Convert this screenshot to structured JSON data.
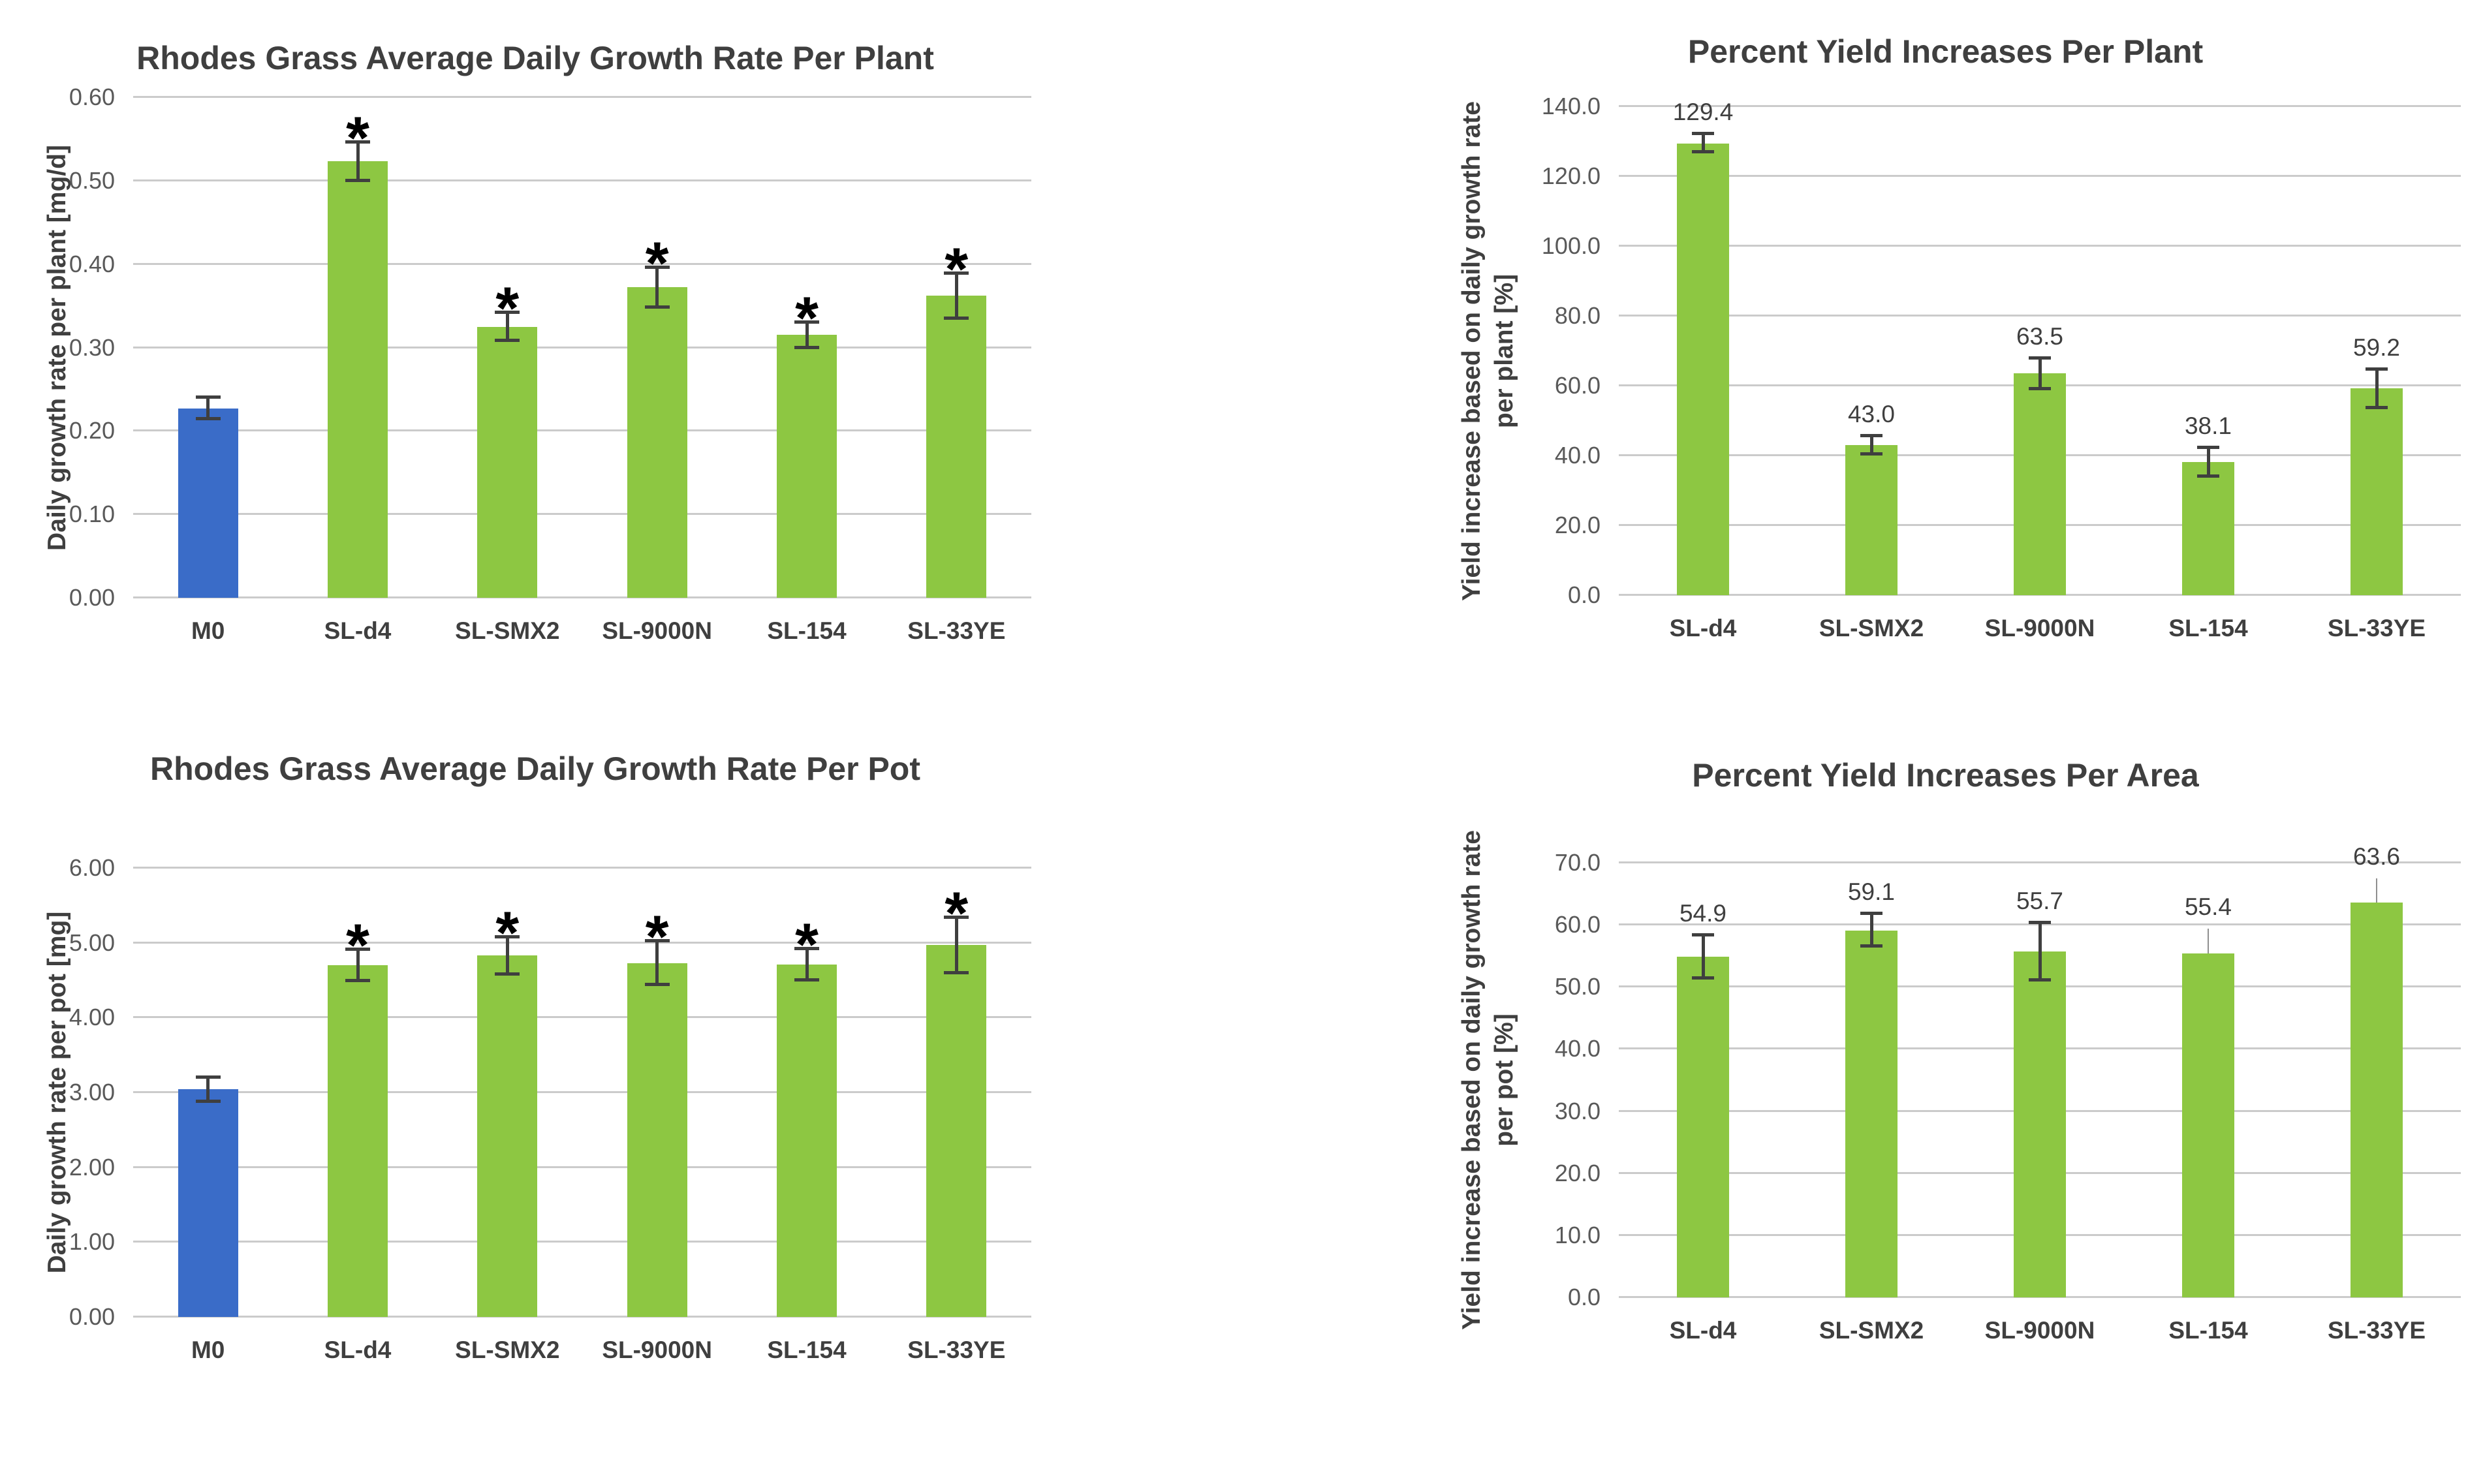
{
  "colors": {
    "background": "#FFFFFF",
    "control_bar": "#3A6CC8",
    "treatment_bar": "#8DC742",
    "gridline": "#CBCBCB",
    "title_text": "#3F3F3F",
    "tick_text": "#595959",
    "axis_label_text": "#3F3F3F",
    "category_text": "#3F3F3F",
    "data_label_text": "#3F3F3F",
    "error_bar": "#3F3F3F",
    "error_bar_thin": "#8F8F8F",
    "significance_marker": "#000000"
  },
  "chart_data": [
    {
      "id": "growth-rate-per-plant",
      "type": "bar",
      "title": "Rhodes Grass Average Daily Growth Rate Per Plant",
      "ylabel_lines": [
        "Daily growth rate per plant [mg/d]"
      ],
      "ylim": [
        0,
        0.6
      ],
      "grid": true,
      "legend": "none",
      "ytick_values": [
        0,
        0.1,
        0.2,
        0.3,
        0.4,
        0.5,
        0.6
      ],
      "ytick_labels": [
        "0.00",
        "0.10",
        "0.20",
        "0.30",
        "0.40",
        "0.50",
        "0.60"
      ],
      "show_data_labels": false,
      "bars": [
        {
          "category": "M0",
          "value": 0.227,
          "err_up": 0.013,
          "err_down": 0.013,
          "err_style": "normal",
          "color_role": "control",
          "significance": "",
          "data_label": ""
        },
        {
          "category": "SL-d4",
          "value": 0.523,
          "err_up": 0.023,
          "err_down": 0.023,
          "err_style": "normal",
          "color_role": "treatment",
          "significance": "*",
          "data_label": ""
        },
        {
          "category": "SL-SMX2",
          "value": 0.325,
          "err_up": 0.017,
          "err_down": 0.017,
          "err_style": "normal",
          "color_role": "treatment",
          "significance": "*",
          "data_label": ""
        },
        {
          "category": "SL-9000N",
          "value": 0.372,
          "err_up": 0.024,
          "err_down": 0.024,
          "err_style": "normal",
          "color_role": "treatment",
          "significance": "*",
          "data_label": ""
        },
        {
          "category": "SL-154",
          "value": 0.315,
          "err_up": 0.015,
          "err_down": 0.015,
          "err_style": "normal",
          "color_role": "treatment",
          "significance": "*",
          "data_label": ""
        },
        {
          "category": "SL-33YE",
          "value": 0.362,
          "err_up": 0.027,
          "err_down": 0.027,
          "err_style": "normal",
          "color_role": "treatment",
          "significance": "*",
          "data_label": ""
        }
      ]
    },
    {
      "id": "yield-increase-per-plant",
      "type": "bar",
      "title": "Percent Yield Increases Per Plant",
      "ylabel_lines": [
        "Yield increase based on daily growth rate",
        "per plant [%]"
      ],
      "ylim": [
        0,
        140
      ],
      "grid": true,
      "legend": "none",
      "ytick_values": [
        0,
        20,
        40,
        60,
        80,
        100,
        120,
        140
      ],
      "ytick_labels": [
        "0.0",
        "20.0",
        "40.0",
        "60.0",
        "80.0",
        "100.0",
        "120.0",
        "140.0"
      ],
      "show_data_labels": true,
      "bars": [
        {
          "category": "SL-d4",
          "value": 129.4,
          "err_up": 2.7,
          "err_down": 2.4,
          "err_style": "normal",
          "color_role": "treatment",
          "significance": "",
          "data_label": "129.4"
        },
        {
          "category": "SL-SMX2",
          "value": 43.0,
          "err_up": 2.6,
          "err_down": 2.6,
          "err_style": "normal",
          "color_role": "treatment",
          "significance": "",
          "data_label": "43.0"
        },
        {
          "category": "SL-9000N",
          "value": 63.5,
          "err_up": 4.4,
          "err_down": 4.4,
          "err_style": "normal",
          "color_role": "treatment",
          "significance": "",
          "data_label": "63.5"
        },
        {
          "category": "SL-154",
          "value": 38.1,
          "err_up": 4.1,
          "err_down": 4.1,
          "err_style": "normal",
          "color_role": "treatment",
          "significance": "",
          "data_label": "38.1"
        },
        {
          "category": "SL-33YE",
          "value": 59.2,
          "err_up": 5.5,
          "err_down": 5.5,
          "err_style": "normal",
          "color_role": "treatment",
          "significance": "",
          "data_label": "59.2"
        }
      ]
    },
    {
      "id": "growth-rate-per-pot",
      "type": "bar",
      "title": "Rhodes Grass Average Daily Growth Rate Per Pot",
      "ylabel_lines": [
        "Daily growth rate per pot [mg]"
      ],
      "ylim": [
        0,
        6
      ],
      "grid": true,
      "legend": "none",
      "ytick_values": [
        0,
        1,
        2,
        3,
        4,
        5,
        6
      ],
      "ytick_labels": [
        "0.00",
        "1.00",
        "2.00",
        "3.00",
        "4.00",
        "5.00",
        "6.00"
      ],
      "show_data_labels": false,
      "bars": [
        {
          "category": "M0",
          "value": 3.04,
          "err_up": 0.16,
          "err_down": 0.16,
          "err_style": "normal",
          "color_role": "control",
          "significance": "",
          "data_label": ""
        },
        {
          "category": "SL-d4",
          "value": 4.7,
          "err_up": 0.21,
          "err_down": 0.21,
          "err_style": "normal",
          "color_role": "treatment",
          "significance": "*",
          "data_label": ""
        },
        {
          "category": "SL-SMX2",
          "value": 4.83,
          "err_up": 0.25,
          "err_down": 0.25,
          "err_style": "normal",
          "color_role": "treatment",
          "significance": "*",
          "data_label": ""
        },
        {
          "category": "SL-9000N",
          "value": 4.73,
          "err_up": 0.29,
          "err_down": 0.29,
          "err_style": "normal",
          "color_role": "treatment",
          "significance": "*",
          "data_label": ""
        },
        {
          "category": "SL-154",
          "value": 4.71,
          "err_up": 0.21,
          "err_down": 0.21,
          "err_style": "normal",
          "color_role": "treatment",
          "significance": "*",
          "data_label": ""
        },
        {
          "category": "SL-33YE",
          "value": 4.97,
          "err_up": 0.37,
          "err_down": 0.37,
          "err_style": "normal",
          "color_role": "treatment",
          "significance": "*",
          "data_label": ""
        }
      ]
    },
    {
      "id": "yield-increase-per-area",
      "type": "bar",
      "title": "Percent Yield Increases Per Area",
      "ylabel_lines": [
        "Yield increase based on daily growth rate",
        "per pot [%]"
      ],
      "ylim": [
        0,
        70
      ],
      "grid": true,
      "legend": "none",
      "ytick_values": [
        0,
        10,
        20,
        30,
        40,
        50,
        60,
        70
      ],
      "ytick_labels": [
        "0.0",
        "10.0",
        "20.0",
        "30.0",
        "40.0",
        "50.0",
        "60.0",
        "70.0"
      ],
      "show_data_labels": true,
      "bars": [
        {
          "category": "SL-d4",
          "value": 54.9,
          "err_up": 3.4,
          "err_down": 3.5,
          "err_style": "normal",
          "color_role": "treatment",
          "significance": "",
          "data_label": "54.9"
        },
        {
          "category": "SL-SMX2",
          "value": 59.1,
          "err_up": 2.7,
          "err_down": 2.5,
          "err_style": "normal",
          "color_role": "treatment",
          "significance": "",
          "data_label": "59.1"
        },
        {
          "category": "SL-9000N",
          "value": 55.7,
          "err_up": 4.6,
          "err_down": 4.6,
          "err_style": "normal",
          "color_role": "treatment",
          "significance": "",
          "data_label": "55.7"
        },
        {
          "category": "SL-154",
          "value": 55.4,
          "err_up": 4.0,
          "err_down": 0,
          "err_style": "thin",
          "color_role": "treatment",
          "significance": "",
          "data_label": "55.4"
        },
        {
          "category": "SL-33YE",
          "value": 63.6,
          "err_up": 3.9,
          "err_down": 0,
          "err_style": "thin",
          "color_role": "treatment",
          "significance": "",
          "data_label": "63.6"
        }
      ]
    }
  ]
}
